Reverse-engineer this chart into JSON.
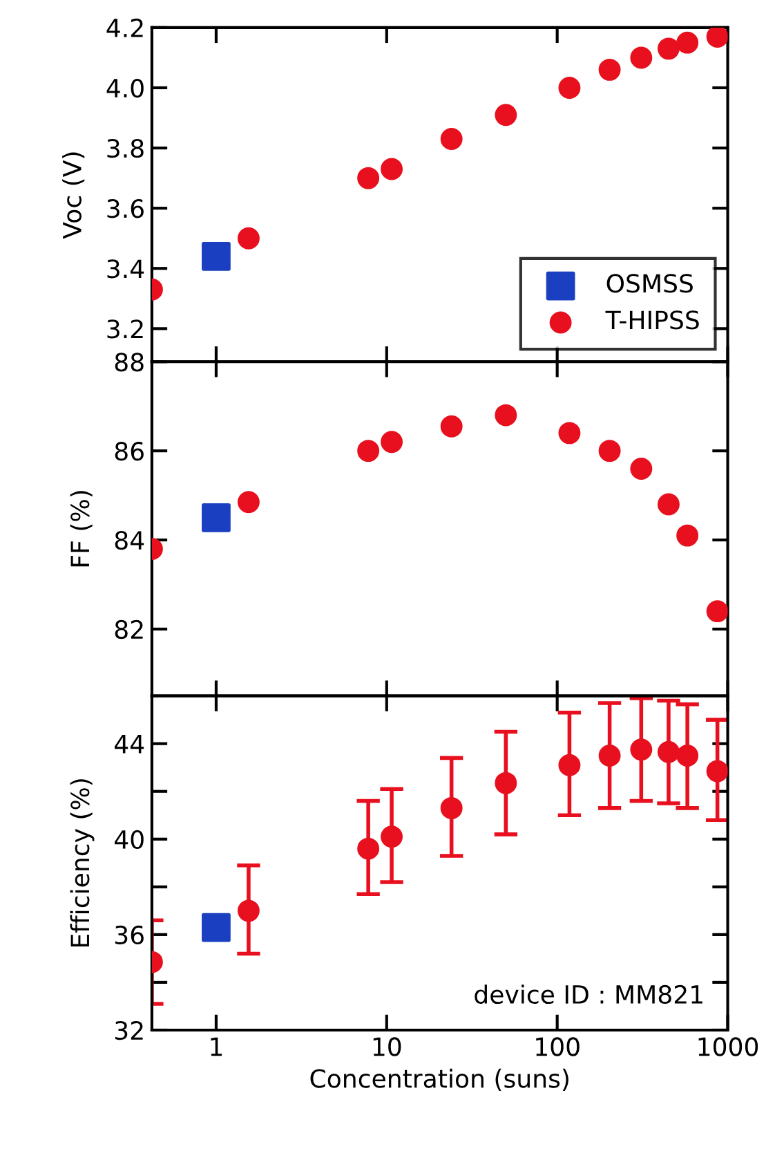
{
  "chart_data": [
    {
      "type": "scatter",
      "ylabel": "Voc (V)",
      "log": "x",
      "xlim": [
        0.42,
        1000
      ],
      "xticks": [
        1,
        10,
        100,
        1000
      ],
      "ylim": [
        3.09,
        4.2
      ],
      "yticks": [
        3.2,
        3.4,
        3.6,
        3.8,
        {
          "value": 4.0,
          "label": "4.0"
        },
        4.2
      ],
      "tick_labels": "y",
      "legend": "bottom right",
      "grid": false,
      "series": [
        {
          "name": "OSMSS",
          "color": "#1a3fc0",
          "marker": "square",
          "x": [
            1
          ],
          "values": [
            3.44
          ]
        },
        {
          "name": "T-HIPSS",
          "color": "#e8101e",
          "marker": "circle",
          "x": [
            0.42,
            1.55,
            7.8,
            10.7,
            24,
            50,
            118,
            203,
            311,
            450,
            580,
            870
          ],
          "values": [
            3.33,
            3.5,
            3.7,
            3.73,
            3.83,
            3.91,
            4.0,
            4.06,
            4.1,
            4.13,
            4.15,
            4.17
          ]
        }
      ]
    },
    {
      "type": "scatter",
      "ylabel": "FF (%)",
      "log": "x",
      "xlim": [
        0.42,
        1000
      ],
      "xticks": [
        1,
        10,
        100,
        1000
      ],
      "ylim": [
        80.5,
        88
      ],
      "yticks": [
        82,
        84,
        86,
        88
      ],
      "tick_labels": "y",
      "grid": false,
      "series": [
        {
          "color": "#1a3fc0",
          "marker": "square",
          "x": [
            1
          ],
          "values": [
            84.5
          ]
        },
        {
          "color": "#e8101e",
          "marker": "circle",
          "x": [
            0.42,
            1.55,
            7.8,
            10.7,
            24,
            50,
            118,
            203,
            311,
            450,
            580,
            870
          ],
          "values": [
            83.8,
            84.85,
            86.0,
            86.2,
            86.55,
            86.8,
            86.4,
            86.0,
            85.6,
            84.8,
            84.1,
            82.4
          ]
        }
      ]
    },
    {
      "type": "scatter",
      "ylabel": "Efficiency (%)",
      "xlabel": "Concentration (suns)",
      "log": "x",
      "xlim": [
        0.42,
        1000
      ],
      "xticks": [
        1,
        10,
        100,
        1000
      ],
      "ylim": [
        32,
        46
      ],
      "yticks": [
        32,
        {
          "value": 34,
          "label": null
        },
        36,
        {
          "value": 38,
          "label": null
        },
        40,
        {
          "value": 42,
          "label": null
        },
        44
      ],
      "grid": false,
      "annotations": [
        "device ID : MM821"
      ],
      "series": [
        {
          "color": "#1a3fc0",
          "marker": "square",
          "x": [
            1
          ],
          "values": [
            36.3
          ]
        },
        {
          "color": "#e8101e",
          "marker": "circle",
          "x": [
            0.42,
            1.55,
            7.8,
            10.7,
            24,
            50,
            118,
            203,
            311,
            450,
            580,
            870
          ],
          "values": [
            34.85,
            37.0,
            39.6,
            40.1,
            41.3,
            42.35,
            43.1,
            43.5,
            43.75,
            43.65,
            43.5,
            42.85
          ],
          "errors": [
            [
              33.1,
              36.6
            ],
            [
              35.2,
              38.9
            ],
            [
              37.7,
              41.6
            ],
            [
              38.2,
              42.1
            ],
            [
              39.3,
              43.4
            ],
            [
              40.2,
              44.5
            ],
            [
              41.0,
              45.3
            ],
            [
              41.3,
              45.7
            ],
            [
              41.6,
              45.9
            ],
            [
              41.5,
              45.8
            ],
            [
              41.3,
              45.65
            ],
            [
              40.8,
              45.0
            ]
          ]
        }
      ]
    }
  ]
}
